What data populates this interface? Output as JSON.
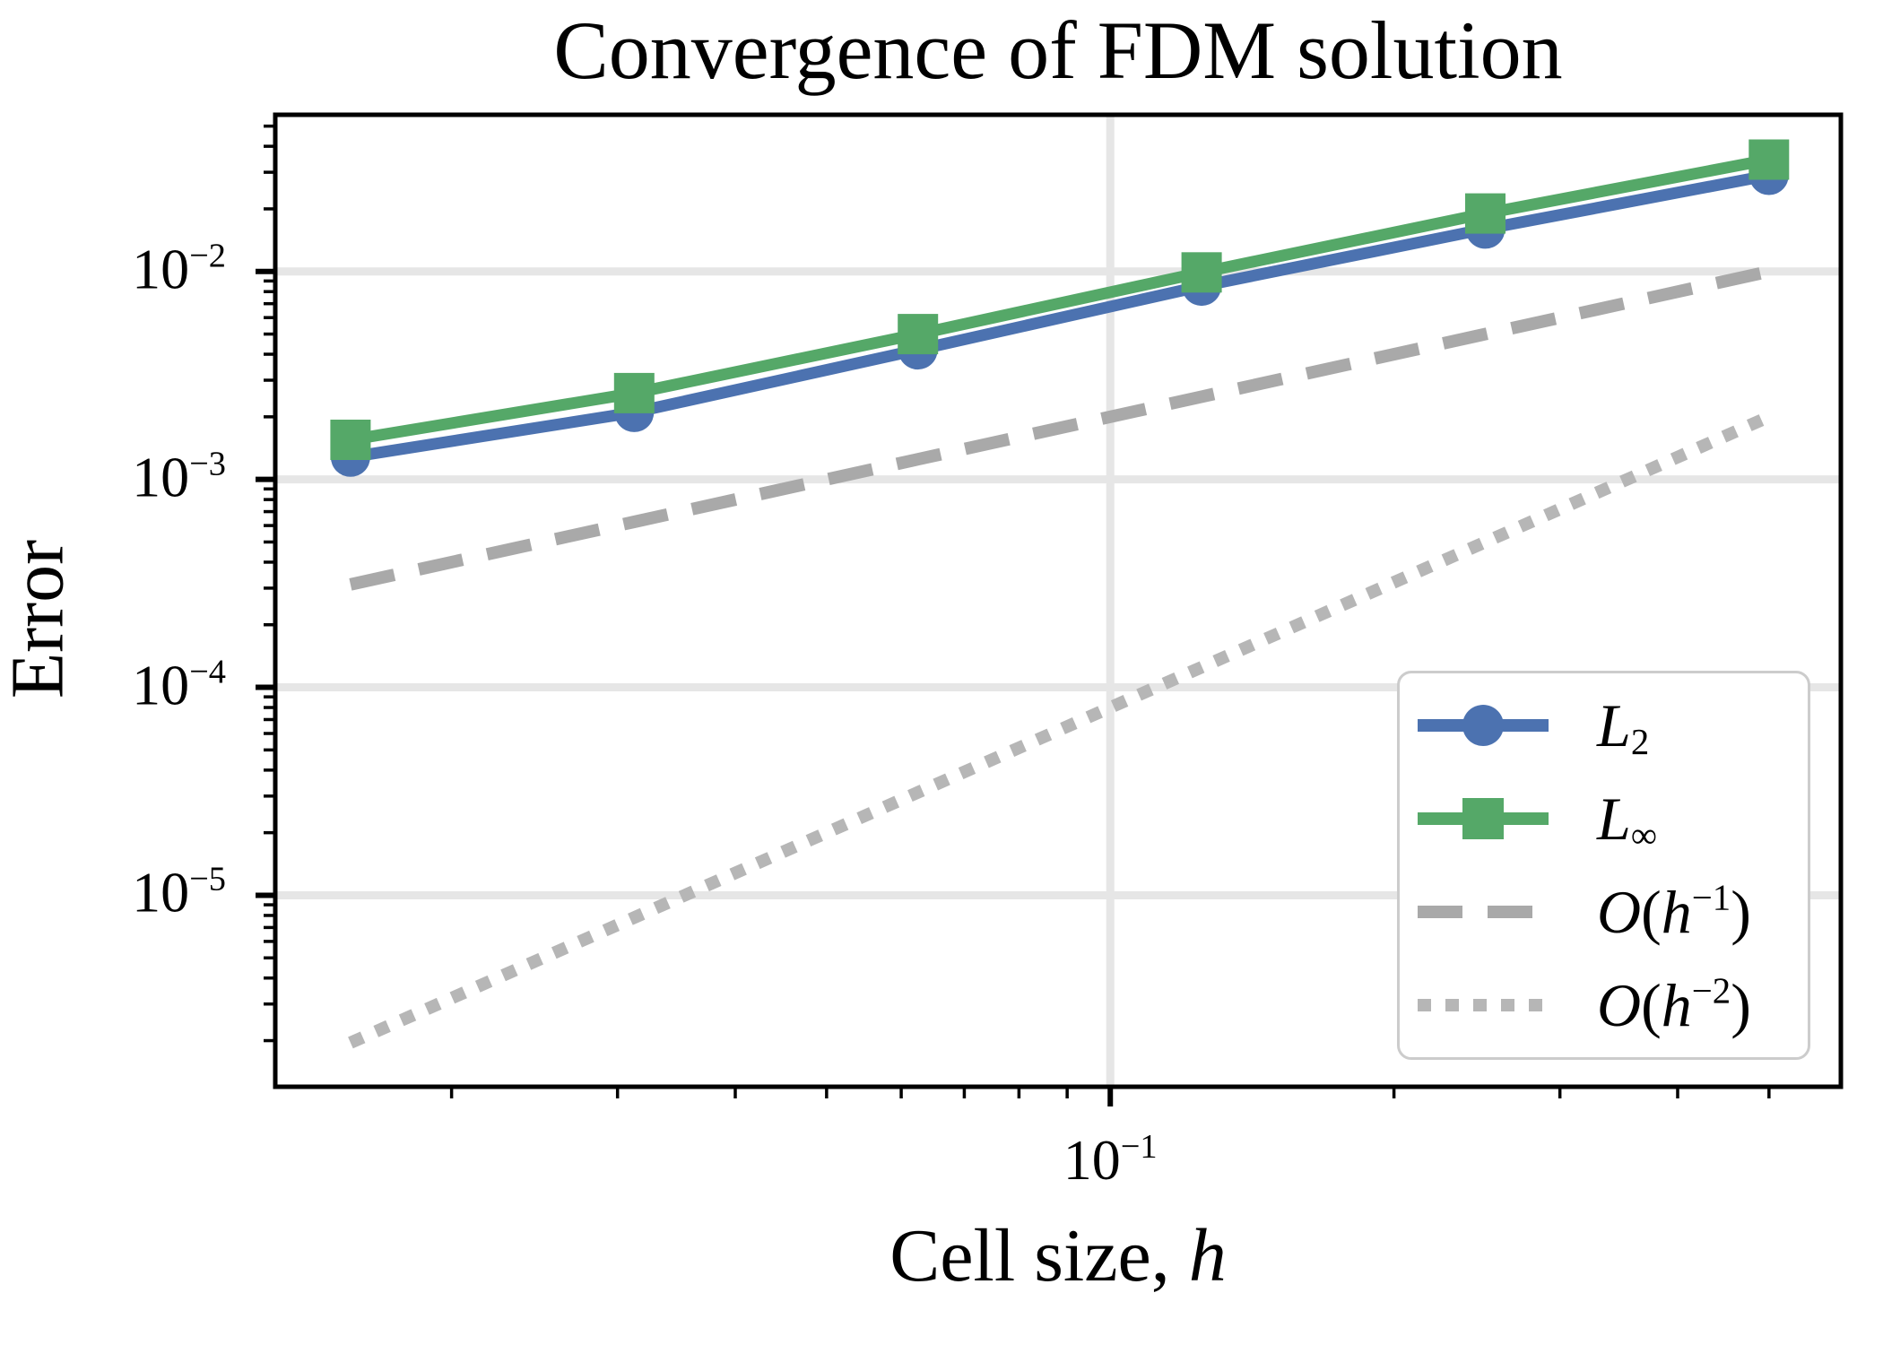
{
  "title": "Convergence of FDM solution",
  "axes": {
    "xlabel": "Cell size, $h$",
    "ylabel": "Error",
    "x_ticks": [
      {
        "label": "$10^{−1}$",
        "value": 0.1
      }
    ],
    "y_ticks": [
      {
        "label": "$10^{−2}$",
        "value": 0.01
      },
      {
        "label": "$10^{−3}$",
        "value": 0.001
      },
      {
        "label": "$10^{−4}$",
        "value": 0.0001
      },
      {
        "label": "$10^{−5}$",
        "value": 1e-05
      }
    ]
  },
  "legend": {
    "position": "lower right",
    "items": [
      {
        "label": "$L_2$",
        "series": 0
      },
      {
        "label": "$L_{∞}$",
        "series": 1
      },
      {
        "label": "$O(h^{−1})$",
        "series": 2
      },
      {
        "label": "$O(h^{−2})$",
        "series": 3
      }
    ]
  },
  "chart_data": {
    "type": "line",
    "title": "Convergence of FDM solution",
    "xlabel": "Cell size, h",
    "ylabel": "Error",
    "xscale": "log",
    "yscale": "log",
    "xlim": [
      0.013,
      0.596
    ],
    "ylim": [
      1.2e-06,
      0.0567
    ],
    "grid": true,
    "x": [
      0.015625,
      0.03125,
      0.0625,
      0.125,
      0.25,
      0.5
    ],
    "series": [
      {
        "name": "L2",
        "color": "#4C72B0",
        "marker": "circle",
        "line": "solid",
        "values": [
          0.00128,
          0.0021,
          0.0042,
          0.0085,
          0.016,
          0.029
        ]
      },
      {
        "name": "Linf",
        "color": "#55A868",
        "marker": "square",
        "line": "solid",
        "values": [
          0.00155,
          0.0026,
          0.005,
          0.0099,
          0.019,
          0.0345
        ]
      },
      {
        "name": "order-1-guide",
        "color": "#A9A9A9",
        "marker": "none",
        "line": "dashed",
        "values": [
          0.0003125,
          0.000625,
          0.00125,
          0.0025,
          0.005,
          0.01
        ]
      },
      {
        "name": "order-2-guide",
        "color": "#B6B6B6",
        "marker": "none",
        "line": "dotted",
        "values": [
          1.9531e-06,
          7.8125e-06,
          3.125e-05,
          0.000125,
          0.0005,
          0.002
        ]
      }
    ],
    "colors": {
      "grid": "#E6E6E6",
      "spine": "#000000",
      "background": "#FFFFFF"
    }
  }
}
